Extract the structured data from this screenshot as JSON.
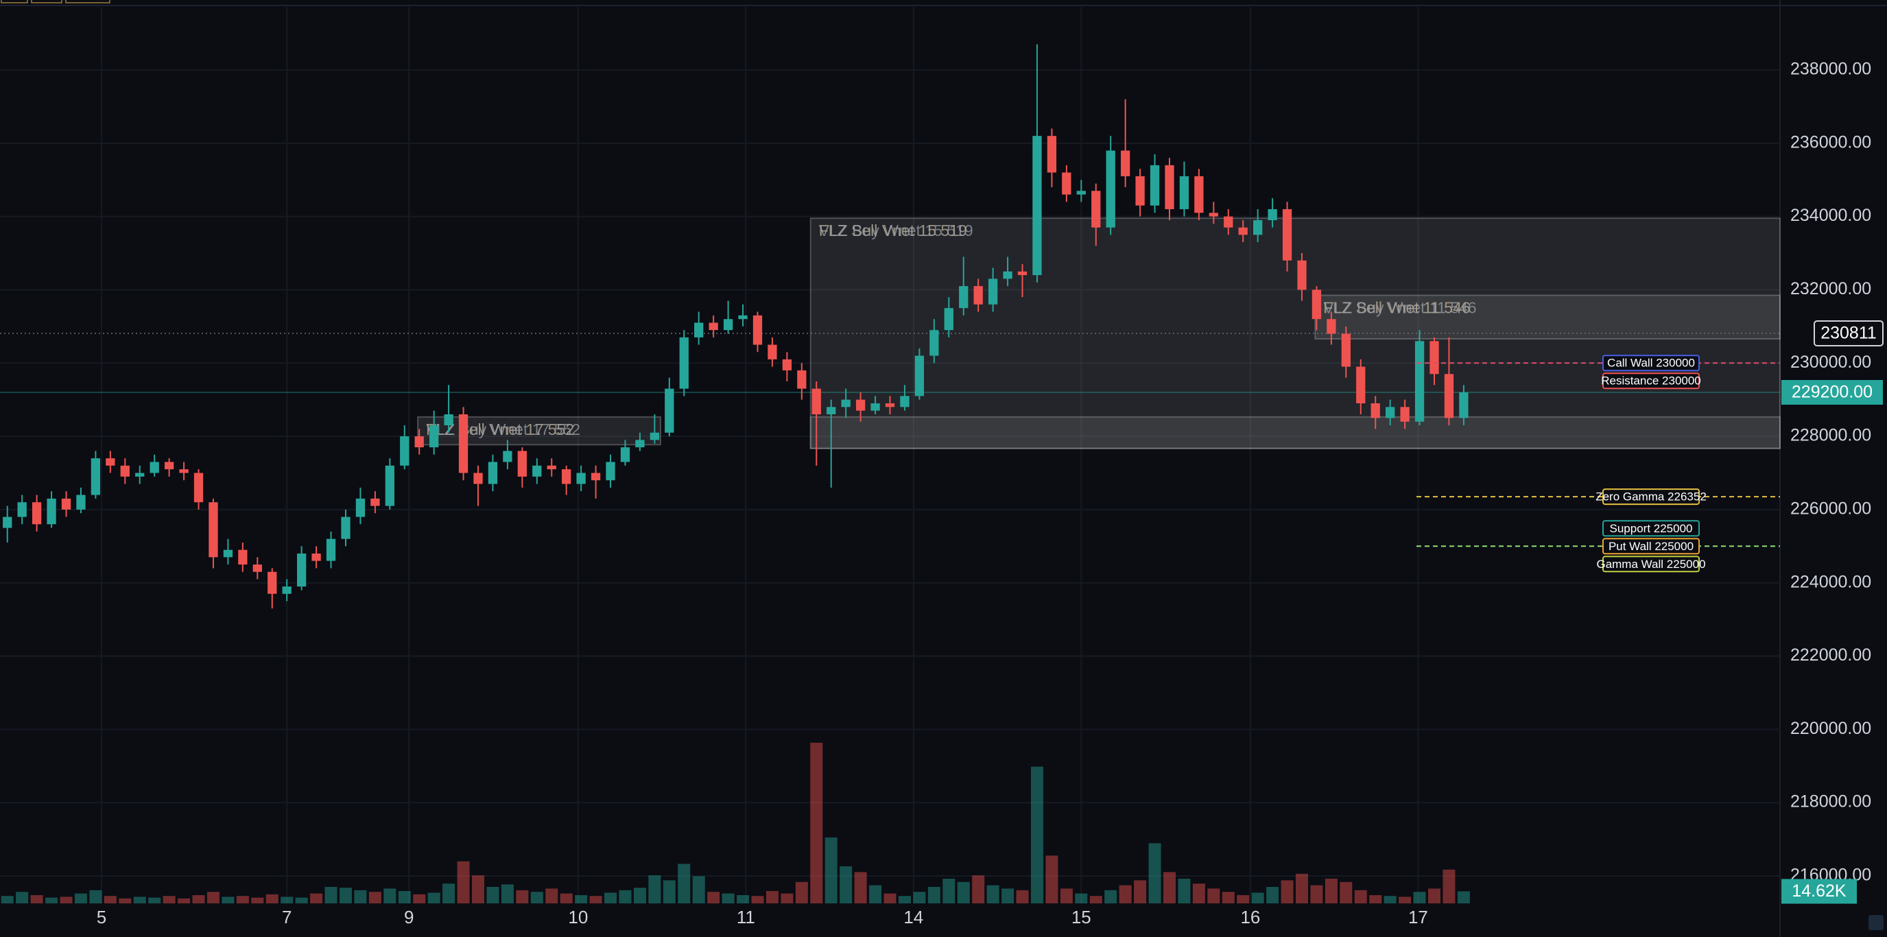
{
  "chart_data": {
    "type": "candlestick",
    "up_color": "#26a69a",
    "down_color": "#ef5350",
    "grid": true,
    "xlim": [
      -0.5,
      120.5
    ],
    "xticks": [
      {
        "value": 6.4,
        "label": "5"
      },
      {
        "value": 19,
        "label": "7"
      },
      {
        "value": 27.3,
        "label": "9"
      },
      {
        "value": 38.8,
        "label": "10"
      },
      {
        "value": 50.2,
        "label": "11"
      },
      {
        "value": 61.6,
        "label": "14"
      },
      {
        "value": 73,
        "label": "15"
      },
      {
        "value": 84.5,
        "label": "16"
      },
      {
        "value": 95.9,
        "label": "17"
      }
    ],
    "ylim": [
      215250,
      239910
    ],
    "yticks": [
      {
        "value": 216000,
        "label": "216000.00"
      },
      {
        "value": 218000,
        "label": "218000.00"
      },
      {
        "value": 220000,
        "label": "220000.00"
      },
      {
        "value": 222000,
        "label": "222000.00"
      },
      {
        "value": 224000,
        "label": "224000.00"
      },
      {
        "value": 226000,
        "label": "226000.00"
      },
      {
        "value": 228000,
        "label": "228000.00"
      },
      {
        "value": 230000,
        "label": "230000.00"
      },
      {
        "value": 232000,
        "label": "232000.00"
      },
      {
        "value": 234000,
        "label": "234000.00"
      },
      {
        "value": 236000,
        "label": "236000.00"
      },
      {
        "value": 238000,
        "label": "238000.00"
      }
    ],
    "open": [
      225500,
      225800,
      226200,
      225600,
      226300,
      226000,
      226400,
      227400,
      227200,
      226900,
      227000,
      227300,
      227100,
      227000,
      226200,
      224700,
      224900,
      224500,
      224300,
      223700,
      223900,
      224800,
      224600,
      225200,
      225800,
      226300,
      226100,
      227200,
      228000,
      227700,
      228300,
      228600,
      227000,
      226700,
      227300,
      227600,
      226900,
      227200,
      227100,
      226700,
      227000,
      226800,
      227300,
      227700,
      227900,
      228100,
      229300,
      230700,
      231100,
      230900,
      231200,
      231300,
      230500,
      230100,
      229800,
      229300,
      228600,
      228800,
      229000,
      228700,
      228900,
      228800,
      229100,
      230200,
      230900,
      231500,
      232100,
      231600,
      232300,
      232500,
      232400,
      236200,
      235200,
      234600,
      234700,
      233700,
      235800,
      235100,
      234300,
      235400,
      234200,
      235100,
      234100,
      234000,
      233700,
      233500,
      233900,
      234200,
      232800,
      232000,
      231200,
      230800,
      229900,
      228900,
      228500,
      228800,
      228400,
      230600,
      229700,
      228500
    ],
    "high": [
      226100,
      226400,
      226400,
      226500,
      226500,
      226600,
      227600,
      227600,
      227400,
      227200,
      227500,
      227400,
      227300,
      227100,
      226300,
      225200,
      225100,
      224700,
      224400,
      224100,
      225000,
      225000,
      225400,
      226000,
      226600,
      226500,
      227400,
      228300,
      228200,
      228700,
      229400,
      228800,
      227200,
      227500,
      227900,
      227700,
      227400,
      227400,
      227200,
      227200,
      227200,
      227500,
      227900,
      228100,
      228600,
      229600,
      230900,
      231400,
      231300,
      231700,
      231600,
      231400,
      230700,
      230300,
      230000,
      229500,
      229000,
      229300,
      229200,
      229100,
      229100,
      229400,
      230400,
      231200,
      231800,
      232900,
      232300,
      232600,
      232900,
      232700,
      238700,
      236400,
      235400,
      235000,
      234900,
      236200,
      237200,
      235300,
      235700,
      235600,
      235500,
      235300,
      234400,
      234200,
      233900,
      234200,
      234500,
      234400,
      233000,
      232100,
      231400,
      231000,
      230100,
      229100,
      229000,
      229000,
      230900,
      230700,
      230700,
      229400
    ],
    "low": [
      225100,
      225600,
      225400,
      225500,
      225800,
      225900,
      226300,
      227000,
      226700,
      226700,
      226900,
      226900,
      226800,
      226000,
      224400,
      224500,
      224300,
      224100,
      223300,
      223500,
      223800,
      224400,
      224400,
      225000,
      225600,
      225900,
      226000,
      227100,
      227500,
      227500,
      228100,
      226800,
      226100,
      226500,
      227100,
      226600,
      226700,
      226900,
      226400,
      226500,
      226300,
      226600,
      227200,
      227600,
      227800,
      228000,
      229100,
      230500,
      230700,
      230800,
      231000,
      230300,
      229900,
      229500,
      229000,
      227200,
      226600,
      228500,
      228400,
      228600,
      228600,
      228700,
      229000,
      230000,
      230700,
      231300,
      231400,
      231400,
      232100,
      231800,
      232200,
      234800,
      234400,
      234400,
      233200,
      233500,
      234800,
      234000,
      234100,
      233900,
      234000,
      233900,
      233800,
      233500,
      233300,
      233300,
      233700,
      232500,
      231700,
      230900,
      230500,
      229600,
      228600,
      228200,
      228300,
      228200,
      228300,
      229400,
      228300,
      228300
    ],
    "close": [
      225800,
      226200,
      225600,
      226300,
      226000,
      226400,
      227400,
      227200,
      226900,
      227000,
      227300,
      227100,
      227000,
      226200,
      224700,
      224900,
      224500,
      224300,
      223700,
      223900,
      224800,
      224600,
      225200,
      225800,
      226300,
      226100,
      227200,
      228000,
      227700,
      228300,
      228600,
      227000,
      226700,
      227300,
      227600,
      226900,
      227200,
      227100,
      226700,
      227000,
      226800,
      227300,
      227700,
      227900,
      228100,
      229300,
      230700,
      231100,
      230900,
      231200,
      231300,
      230500,
      230100,
      229800,
      229300,
      228600,
      228800,
      229000,
      228700,
      228900,
      228800,
      229100,
      230200,
      230900,
      231500,
      232100,
      231600,
      232300,
      232500,
      232400,
      236200,
      235200,
      234600,
      234700,
      233700,
      235800,
      235100,
      234300,
      235400,
      234200,
      235100,
      234100,
      234000,
      233700,
      233500,
      233900,
      234200,
      232800,
      232000,
      231200,
      230800,
      229900,
      228900,
      228500,
      228800,
      228400,
      230600,
      229700,
      228500,
      229200
    ],
    "volume": [
      9000,
      14000,
      10000,
      7000,
      8000,
      12000,
      16000,
      9000,
      6000,
      8000,
      7000,
      9000,
      6000,
      10000,
      14000,
      8000,
      9000,
      7000,
      11000,
      8000,
      7000,
      12000,
      20000,
      19000,
      16000,
      14000,
      18000,
      15000,
      11000,
      13000,
      24000,
      51000,
      34000,
      20000,
      23000,
      16000,
      14000,
      18000,
      12000,
      10000,
      9000,
      13000,
      16000,
      19000,
      34000,
      28000,
      48000,
      33000,
      14000,
      12000,
      10000,
      9000,
      15000,
      12000,
      26000,
      195000,
      80000,
      45000,
      38000,
      22000,
      12000,
      9000,
      14000,
      20000,
      30000,
      26000,
      34000,
      22000,
      18000,
      16000,
      166000,
      58000,
      18000,
      12000,
      9000,
      16000,
      22000,
      28000,
      73000,
      38000,
      30000,
      24000,
      18000,
      14000,
      10000,
      13000,
      20000,
      28000,
      36000,
      22000,
      30000,
      26000,
      16000,
      10000,
      9000,
      8000,
      14000,
      18000,
      41000,
      14620
    ],
    "volume_ylim": [
      0,
      219000
    ],
    "last_volume": {
      "value": 14620,
      "label": "14.62K"
    },
    "last_price": {
      "value": 229200,
      "label": "229200.00"
    },
    "crosshair_price": 230811,
    "zones": [
      {
        "x0": 27.9,
        "x1": 44.4,
        "y0": 227770,
        "y1": 228530,
        "labels": [
          "FLZ Sell Vnet 17 552",
          "VLZ Buy Wnet 17 552"
        ]
      },
      {
        "x0": 54.6,
        "x1": 120.5,
        "y0": 227670,
        "y1": 233954,
        "labels": [
          "FLZ Sell Vnet 15 519",
          "VLZ Buy Wnet 15 519"
        ]
      },
      {
        "x0": 54.6,
        "x1": 120.5,
        "y0": 227670,
        "y1": 228530,
        "labels": []
      },
      {
        "x0": 88.9,
        "x1": 120.5,
        "y0": 230660,
        "y1": 231850,
        "labels": [
          "FLZ Sell Vnet 11 546",
          "VLZ Buy Wnet 11 546"
        ]
      }
    ],
    "levels": [
      {
        "value": 230000,
        "label": "Call Wall 230000",
        "color": "#4a5ee8",
        "line_color": "#e04a6a"
      },
      {
        "value": 230000,
        "label": "Resistance 230000",
        "color": "#ef5350",
        "line_color": "#e04a6a"
      },
      {
        "value": 226352,
        "label": "Zero Gamma 226352",
        "color": "#e8c040",
        "line_color": "#e8c040"
      },
      {
        "value": 225000,
        "label": "Support 225000",
        "color": "#26a69a",
        "line_color": "#8ee070"
      },
      {
        "value": 225000,
        "label": "Put Wall 225000",
        "color": "#f0a030",
        "line_color": "#8ee070"
      },
      {
        "value": 225000,
        "label": "Gamma Wall 225000",
        "color": "#c0d040",
        "line_color": "#8ee070"
      }
    ]
  }
}
